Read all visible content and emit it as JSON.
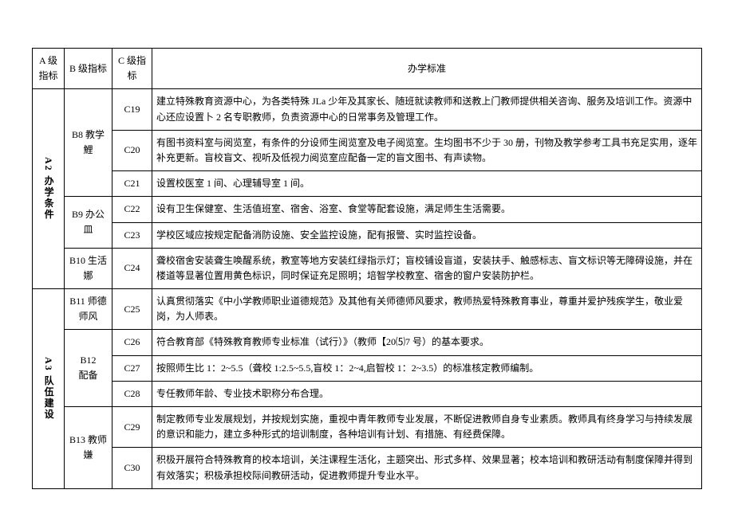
{
  "headers": {
    "colA": "A 级指标",
    "colB": "B 级指标",
    "colC": "C 级指标",
    "colD": "办学标准"
  },
  "groups": [
    {
      "a": "A2 办学条件",
      "b": [
        {
          "label": "B8 教学鯉",
          "rows": [
            {
              "c": "C19",
              "d": "建立特殊教育资源中心，为各类特殊 JLa 少年及其家长、随班就读教师和送教上门教师提供相关咨询、服务及培训工作。资源中心还应设置卜 2 名专职教师，负责资源中心的日常事务及管理工作。"
            },
            {
              "c": "C20",
              "d": "有图书资料室与阅览室，有条件的分设师生阅览室及电子阅览室。生均图书不少于 30 册，刊物及教学参考工具书充足实用，逐年补充更新。盲校盲文、视听及低视力阅览室应配备一定的盲文图书、有声读物。"
            },
            {
              "c": "C21",
              "d": "设置校医室 1 间、心理辅导室 1 间。"
            }
          ]
        },
        {
          "label": "B9 办公皿",
          "rows": [
            {
              "c": "C22",
              "d": "设有卫生保健室、生活值班室、宿舍、浴室、食堂等配套设施，满足师生生活需要。"
            },
            {
              "c": "C23",
              "d": "学校区域应按规定配备消防设施、安全监控设施，配有报警、实时监控设备。"
            }
          ]
        },
        {
          "label": "B10 生活娜",
          "rows": [
            {
              "c": "C24",
              "d": "聋校宿舍安装聋生唤醒系统，教室等地方安装红绿指示灯；盲校铺设盲道，安装扶手、触感标志、盲文标识等无障碍设施，并在楼道等显著位置用黄色标识，同时保证充足照明；培智学校教室、宿舍的窗户安装防护栏。"
            }
          ]
        }
      ]
    },
    {
      "a": "A3 队伍建设",
      "b": [
        {
          "label": "B11 师德师风",
          "rows": [
            {
              "c": "C25",
              "d": "认真贯彻落实《中小学教师职业道德规范》及其他有关师德师风要求，教师热爱特殊教育事业，尊重并爱护残疾学生，敬业爱岗，为人师表。"
            }
          ]
        },
        {
          "label": "B12\n配备",
          "rows": [
            {
              "c": "C26",
              "d": "符合教育部《特殊教育教师专业标准（试行）》（教师【20⑸7 号）的基本要求。"
            },
            {
              "c": "C27",
              "d": "按照师生比 1：2~5.5（聋校 1:2.5~5.5,盲校 1：2~4,启智校 1：2~3.5）的标准核定教师编制。"
            },
            {
              "c": "C28",
              "d": "专任教师年龄、专业技术职称分布合理。"
            }
          ]
        },
        {
          "label": "B13 教师嫌",
          "rows": [
            {
              "c": "C29",
              "d": "制定教师专业发展规划，并按规划实施，重视中青年教师专业发展，不断促进教师自身专业素质。教师具有终身学习与持续发展的意识和能力，建立多种形式的培训制度，各种培训有计划、有措施、有经费保障。"
            },
            {
              "c": "C30",
              "d": "积极开展符合特殊教育的校本培训，关注课程生活化，主题突出、形式多样、效果显著；校本培训和教研活动有制度保障并得到有效落实；积极承担校际间教研活动，促进教师提升专业水平。"
            }
          ]
        }
      ]
    }
  ]
}
